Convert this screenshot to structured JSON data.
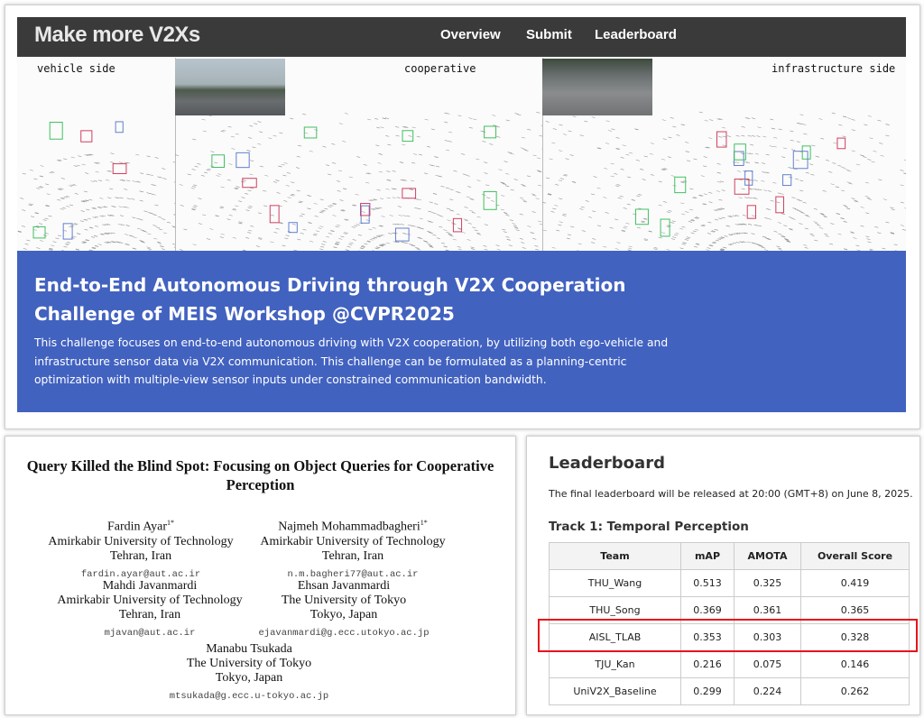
{
  "nav": {
    "brand": "Make more V2Xs",
    "links": [
      "Overview",
      "Submit",
      "Leaderboard"
    ]
  },
  "views": {
    "vehicle": "vehicle side",
    "cooperative": "cooperative",
    "infrastructure": "infrastructure side"
  },
  "banner": {
    "title_line1": "End-to-End Autonomous Driving through V2X Cooperation",
    "title_line2": "Challenge of MEIS Workshop @CVPR2025",
    "description": "This challenge focuses on end-to-end autonomous driving with V2X cooperation, by utilizing both ego-vehicle and infrastructure sensor data via V2X communication. This challenge can be formulated as a planning-centric optimization with multiple-view sensor inputs under constrained communication bandwidth.",
    "color": "#4262c0"
  },
  "paper": {
    "title": "Query Killed the Blind Spot: Focusing on Object Queries for Cooperative Perception",
    "authors": [
      {
        "name": "Fardin Ayar",
        "mark": "1*",
        "affiliation": "Amirkabir University of Technology",
        "location": "Tehran, Iran",
        "email": "fardin.ayar@aut.ac.ir"
      },
      {
        "name": "Najmeh Mohammadbagheri",
        "mark": "1*",
        "affiliation": "Amirkabir University of Technology",
        "location": "Tehran, Iran",
        "email": "n.m.bagheri77@aut.ac.ir"
      },
      {
        "name": "Mahdi Javanmardi",
        "mark": "",
        "affiliation": "Amirkabir University of Technology",
        "location": "Tehran, Iran",
        "email": "mjavan@aut.ac.ir"
      },
      {
        "name": "Ehsan Javanmardi",
        "mark": "",
        "affiliation": "The University of Tokyo",
        "location": "Tokyo, Japan",
        "email": "ejavanmardi@g.ecc.utokyo.ac.jp"
      },
      {
        "name": "Manabu Tsukada",
        "mark": "",
        "affiliation": "The University of Tokyo",
        "location": "Tokyo, Japan",
        "email": "mtsukada@g.ecc.u-tokyo.ac.jp"
      }
    ]
  },
  "leaderboard": {
    "title": "Leaderboard",
    "note": "The final leaderboard will be released at 20:00 (GMT+8) on June 8, 2025.",
    "track": "Track 1: Temporal Perception",
    "columns": [
      "Team",
      "mAP",
      "AMOTA",
      "Overall Score"
    ],
    "rows": [
      [
        "THU_Wang",
        "0.513",
        "0.325",
        "0.419"
      ],
      [
        "THU_Song",
        "0.369",
        "0.361",
        "0.365"
      ],
      [
        "AISL_TLAB",
        "0.353",
        "0.303",
        "0.328"
      ],
      [
        "TJU_Kan",
        "0.216",
        "0.075",
        "0.146"
      ],
      [
        "UniV2X_Baseline",
        "0.299",
        "0.224",
        "0.262"
      ]
    ],
    "highlighted_team": "AISL_TLAB",
    "highlight_color": "#e8141c"
  }
}
